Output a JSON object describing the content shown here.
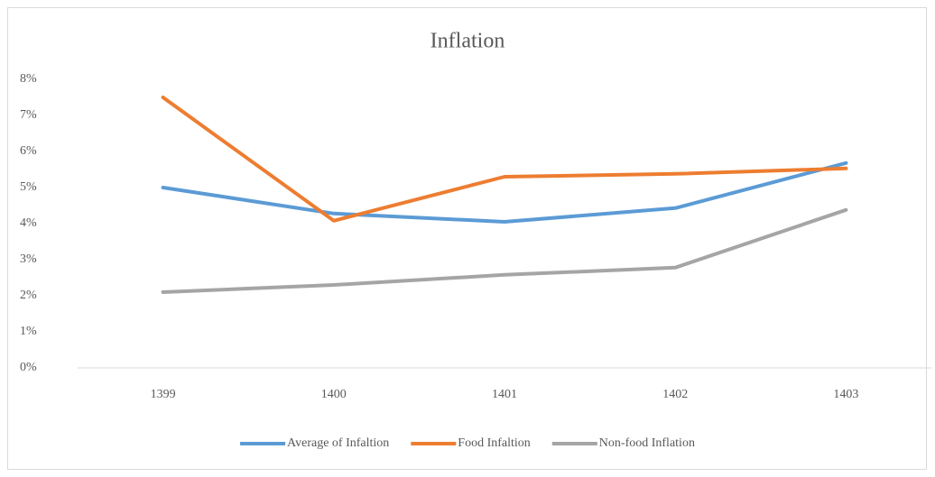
{
  "chart_data": {
    "type": "line",
    "title": "Inflation",
    "categories": [
      "1399",
      "1400",
      "1401",
      "1402",
      "1403"
    ],
    "series": [
      {
        "name": "Average of Infaltion",
        "color": "#5b9bd5",
        "values": [
          5.0,
          4.28,
          4.05,
          4.43,
          5.68
        ]
      },
      {
        "name": "Food Infaltion",
        "color": "#ed7d31",
        "values": [
          7.5,
          4.08,
          5.3,
          5.38,
          5.53
        ]
      },
      {
        "name": "Non-food Inflation",
        "color": "#a5a5a5",
        "values": [
          2.1,
          2.3,
          2.58,
          2.78,
          4.38
        ]
      }
    ],
    "ylim": [
      0,
      8
    ],
    "yticks": [
      {
        "value": 0,
        "label": "0%"
      },
      {
        "value": 1,
        "label": "1%"
      },
      {
        "value": 2,
        "label": "2%"
      },
      {
        "value": 3,
        "label": "3%"
      },
      {
        "value": 4,
        "label": "4%"
      },
      {
        "value": 5,
        "label": "5%"
      },
      {
        "value": 6,
        "label": "6%"
      },
      {
        "value": 7,
        "label": "7%"
      },
      {
        "value": 8,
        "label": "8%"
      }
    ],
    "grid": false,
    "legend": "bottom"
  }
}
